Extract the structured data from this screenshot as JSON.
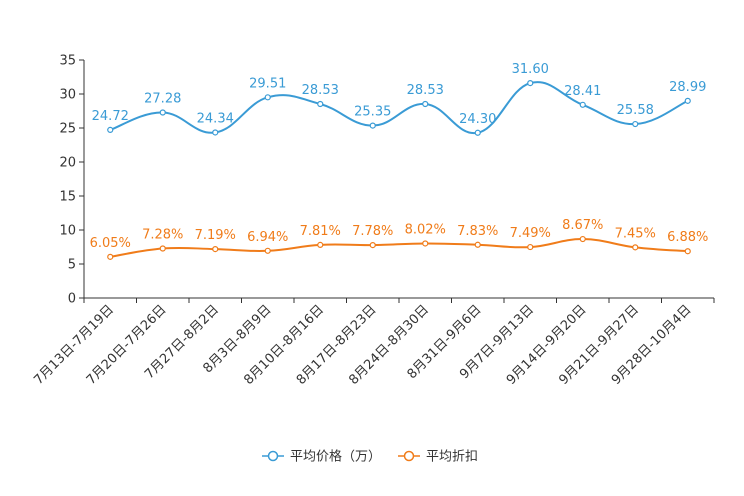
{
  "chart_data": {
    "type": "line",
    "title": "",
    "xlabel": "",
    "ylabel": "",
    "ylim": [
      0,
      35
    ],
    "yticks": [
      0,
      5,
      10,
      15,
      20,
      25,
      30,
      35
    ],
    "grid": false,
    "legend_position": "bottom-center",
    "categories": [
      "7月13日-7月19日",
      "7月20日-7月26日",
      "7月27日-8月2日",
      "8月3日-8月9日",
      "8月10日-8月16日",
      "8月17日-8月23日",
      "8月24日-8月30日",
      "8月31日-9月6日",
      "9月7日-9月13日",
      "9月14日-9月20日",
      "9月21日-9月27日",
      "9月28日-10月4日"
    ],
    "series": [
      {
        "name": "平均价格（万）",
        "color": "#3a9bd5",
        "values": [
          24.72,
          27.28,
          24.34,
          29.51,
          28.53,
          25.35,
          28.53,
          24.3,
          31.6,
          28.41,
          25.58,
          28.99
        ],
        "labels": [
          "24.72",
          "27.28",
          "24.34",
          "29.51",
          "28.53",
          "25.35",
          "28.53",
          "24.30",
          "31.60",
          "28.41",
          "25.58",
          "28.99"
        ]
      },
      {
        "name": "平均折扣",
        "color": "#f07c1a",
        "values": [
          6.05,
          7.28,
          7.19,
          6.94,
          7.81,
          7.78,
          8.02,
          7.83,
          7.49,
          8.67,
          7.45,
          6.88
        ],
        "labels": [
          "6.05%",
          "7.28%",
          "7.19%",
          "6.94%",
          "7.81%",
          "7.78%",
          "8.02%",
          "7.83%",
          "7.49%",
          "8.67%",
          "7.45%",
          "6.88%"
        ]
      }
    ]
  }
}
